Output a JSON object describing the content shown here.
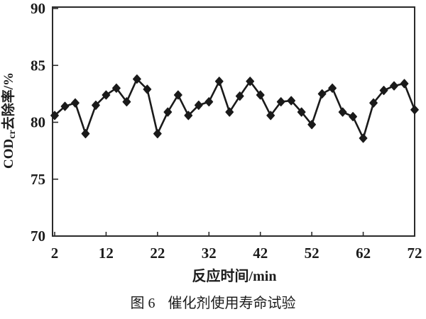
{
  "figure": {
    "caption_label": "图 6",
    "caption_text": "催化剂使用寿命试验"
  },
  "chart_data": {
    "type": "line",
    "title": "图 6　催化剂使用寿命试验",
    "xlabel": "反应时间/min",
    "ylabel": "CODcr去除率/%",
    "ylabel_parts": {
      "prefix": "COD",
      "sub": "cr",
      "suffix": "去除率/%"
    },
    "x": [
      2,
      4,
      6,
      8,
      10,
      12,
      14,
      16,
      18,
      20,
      22,
      24,
      26,
      28,
      30,
      32,
      34,
      36,
      38,
      40,
      42,
      44,
      46,
      48,
      50,
      52,
      54,
      56,
      58,
      60,
      62,
      64,
      66,
      68,
      70,
      72
    ],
    "values": [
      80.6,
      81.4,
      81.7,
      79.0,
      81.5,
      82.4,
      83.0,
      81.8,
      83.8,
      82.9,
      79.0,
      80.9,
      82.4,
      80.6,
      81.5,
      81.8,
      83.6,
      80.9,
      82.3,
      83.6,
      82.4,
      80.6,
      81.8,
      81.9,
      80.9,
      79.8,
      82.5,
      83.0,
      80.9,
      80.5,
      78.6,
      81.7,
      82.8,
      83.2,
      83.4,
      81.1
    ],
    "xlim": [
      2,
      72
    ],
    "ylim": [
      70,
      90
    ],
    "xticks": [
      2,
      12,
      22,
      32,
      42,
      52,
      62,
      72
    ],
    "yticks": [
      70,
      75,
      80,
      85,
      90
    ],
    "grid": false,
    "legend_position": "none",
    "marker": "diamond",
    "line_color": "#1a1a1a",
    "frame_color": "#2a2a2a"
  }
}
